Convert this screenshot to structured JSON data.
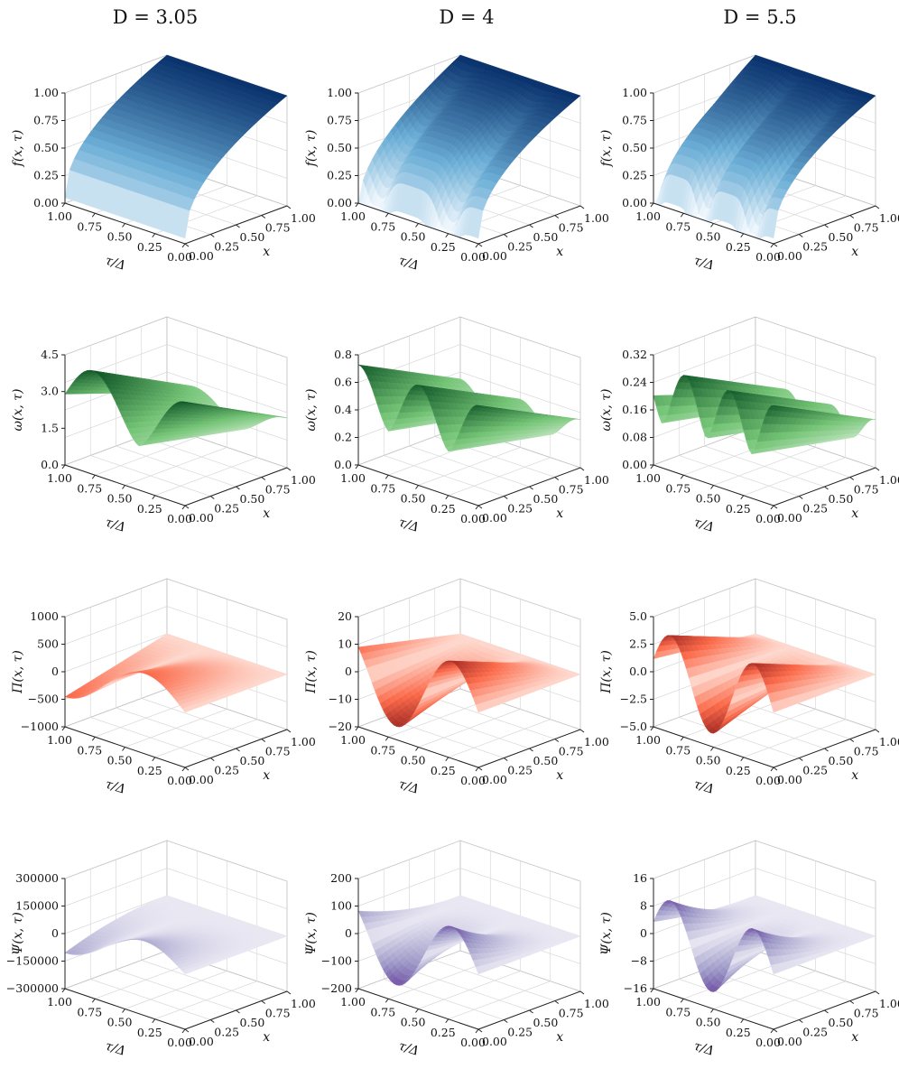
{
  "columns": [
    "D = 3.05",
    "D = 4",
    "D = 5.5"
  ],
  "chart_data": [
    {
      "type": "surface",
      "row": 0,
      "col": 0,
      "title": "D = 3.05",
      "zlabel": "f(x, τ)",
      "xlabel": "x",
      "ylabel": "τ/Δ",
      "zticks": [
        "0.00",
        "0.25",
        "0.50",
        "0.75",
        "1.00"
      ],
      "xticks": [
        "0.00",
        "0.25",
        "0.50",
        "0.75",
        "1.00"
      ],
      "yticks": [
        "1.00",
        "0.75",
        "0.50",
        "0.25",
        "0.00"
      ],
      "colormap": [
        "#f7fbff",
        "#6baed6",
        "#08306b"
      ]
    },
    {
      "type": "surface",
      "row": 0,
      "col": 1,
      "title": "D = 4",
      "zlabel": "f(x, τ)",
      "xlabel": "x",
      "ylabel": "τ/Δ",
      "zticks": [
        "0.00",
        "0.25",
        "0.50",
        "0.75",
        "1.00"
      ],
      "xticks": [
        "0.00",
        "0.25",
        "0.50",
        "0.75",
        "1.00"
      ],
      "yticks": [
        "1.00",
        "0.75",
        "0.50",
        "0.25",
        "0.00"
      ],
      "colormap": [
        "#f7fbff",
        "#6baed6",
        "#08306b"
      ]
    },
    {
      "type": "surface",
      "row": 0,
      "col": 2,
      "title": "D = 5.5",
      "zlabel": "f(x, τ)",
      "xlabel": "x",
      "ylabel": "τ/Δ",
      "zticks": [
        "0.00",
        "0.25",
        "0.50",
        "0.75",
        "1.00"
      ],
      "xticks": [
        "0.00",
        "0.25",
        "0.50",
        "0.75",
        "1.00"
      ],
      "yticks": [
        "1.00",
        "0.75",
        "0.50",
        "0.25",
        "0.00"
      ],
      "colormap": [
        "#f7fbff",
        "#6baed6",
        "#08306b"
      ]
    },
    {
      "type": "surface",
      "row": 1,
      "col": 0,
      "title": "D = 3.05",
      "zlabel": "ω(x, τ)",
      "xlabel": "x",
      "ylabel": "τ/Δ",
      "zticks": [
        "0.0",
        "1.5",
        "3.0",
        "4.5"
      ],
      "xticks": [
        "0.00",
        "0.25",
        "0.50",
        "0.75",
        "1.00"
      ],
      "yticks": [
        "1.00",
        "0.75",
        "0.50",
        "0.25",
        "0.00"
      ],
      "colormap": [
        "#f7fcf5",
        "#74c476",
        "#00441b"
      ]
    },
    {
      "type": "surface",
      "row": 1,
      "col": 1,
      "title": "D = 4",
      "zlabel": "ω(x, τ)",
      "xlabel": "x",
      "ylabel": "τ/Δ",
      "zticks": [
        "0.0",
        "0.2",
        "0.4",
        "0.6",
        "0.8"
      ],
      "xticks": [
        "0.00",
        "0.25",
        "0.50",
        "0.75",
        "1.00"
      ],
      "yticks": [
        "1.00",
        "0.75",
        "0.50",
        "0.25",
        "0.00"
      ],
      "colormap": [
        "#f7fcf5",
        "#74c476",
        "#00441b"
      ]
    },
    {
      "type": "surface",
      "row": 1,
      "col": 2,
      "title": "D = 5.5",
      "zlabel": "ω(x, τ)",
      "xlabel": "x",
      "ylabel": "τ/Δ",
      "zticks": [
        "0.00",
        "0.08",
        "0.16",
        "0.24",
        "0.32"
      ],
      "xticks": [
        "0.00",
        "0.25",
        "0.50",
        "0.75",
        "1.00"
      ],
      "yticks": [
        "1.00",
        "0.75",
        "0.50",
        "0.25",
        "0.00"
      ],
      "colormap": [
        "#f7fcf5",
        "#74c476",
        "#00441b"
      ]
    },
    {
      "type": "surface",
      "row": 2,
      "col": 0,
      "title": "D = 3.05",
      "zlabel": "Π(x, τ)",
      "xlabel": "x",
      "ylabel": "τ/Δ",
      "zticks": [
        "−1000",
        "−500",
        "0",
        "500",
        "1000"
      ],
      "xticks": [
        "0.00",
        "0.25",
        "0.50",
        "0.75",
        "1.00"
      ],
      "yticks": [
        "1.00",
        "0.75",
        "0.50",
        "0.25",
        "0.00"
      ],
      "colormap": [
        "#fff5f0",
        "#fb6a4a",
        "#67000d"
      ]
    },
    {
      "type": "surface",
      "row": 2,
      "col": 1,
      "title": "D = 4",
      "zlabel": "Π(x, τ)",
      "xlabel": "x",
      "ylabel": "τ/Δ",
      "zticks": [
        "−20",
        "−10",
        "0",
        "10",
        "20"
      ],
      "xticks": [
        "0.00",
        "0.25",
        "0.50",
        "0.75",
        "1.00"
      ],
      "yticks": [
        "1.00",
        "0.75",
        "0.50",
        "0.25",
        "0.00"
      ],
      "colormap": [
        "#fff5f0",
        "#fb6a4a",
        "#67000d"
      ]
    },
    {
      "type": "surface",
      "row": 2,
      "col": 2,
      "title": "D = 5.5",
      "zlabel": "Π(x, τ)",
      "xlabel": "x",
      "ylabel": "τ/Δ",
      "zticks": [
        "−5.0",
        "−2.5",
        "0.0",
        "2.5",
        "5.0"
      ],
      "xticks": [
        "0.00",
        "0.25",
        "0.50",
        "0.75",
        "1.00"
      ],
      "yticks": [
        "1.00",
        "0.75",
        "0.50",
        "0.25",
        "0.00"
      ],
      "colormap": [
        "#fff5f0",
        "#fb6a4a",
        "#67000d"
      ]
    },
    {
      "type": "surface",
      "row": 3,
      "col": 0,
      "title": "D = 3.05",
      "zlabel": "Ψ(x, τ)",
      "xlabel": "x",
      "ylabel": "τ/Δ",
      "zticks": [
        "−300000",
        "−150000",
        "0",
        "150000",
        "300000"
      ],
      "xticks": [
        "0.00",
        "0.25",
        "0.50",
        "0.75",
        "1.00"
      ],
      "yticks": [
        "1.00",
        "0.75",
        "0.50",
        "0.25",
        "0.00"
      ],
      "colormap": [
        "#fcfbfd",
        "#9e9ac8",
        "#3f007d"
      ]
    },
    {
      "type": "surface",
      "row": 3,
      "col": 1,
      "title": "D = 4",
      "zlabel": "Ψ(x, τ)",
      "xlabel": "x",
      "ylabel": "τ/Δ",
      "zticks": [
        "−200",
        "−100",
        "0",
        "100",
        "200"
      ],
      "xticks": [
        "0.00",
        "0.25",
        "0.50",
        "0.75",
        "1.00"
      ],
      "yticks": [
        "1.00",
        "0.75",
        "0.50",
        "0.25",
        "0.00"
      ],
      "colormap": [
        "#fcfbfd",
        "#9e9ac8",
        "#3f007d"
      ]
    },
    {
      "type": "surface",
      "row": 3,
      "col": 2,
      "title": "D = 5.5",
      "zlabel": "Ψ(x, τ)",
      "xlabel": "x",
      "ylabel": "τ/Δ",
      "zticks": [
        "−16",
        "−8",
        "0",
        "8",
        "16"
      ],
      "xticks": [
        "0.00",
        "0.25",
        "0.50",
        "0.75",
        "1.00"
      ],
      "yticks": [
        "1.00",
        "0.75",
        "0.50",
        "0.25",
        "0.00"
      ],
      "colormap": [
        "#fcfbfd",
        "#9e9ac8",
        "#3f007d"
      ]
    }
  ]
}
